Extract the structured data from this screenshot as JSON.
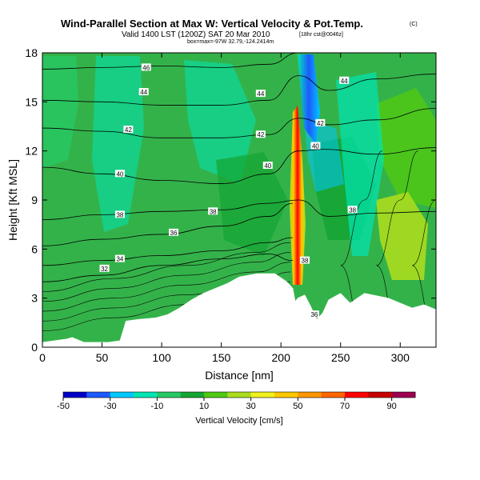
{
  "chart_data": {
    "type": "heatmap",
    "title": "Wind-Parallel Section at Max W: Vertical Velocity & Pot.Temp.",
    "title_mark": "(C)",
    "subtitle": "Valid 1400 LST (1200Z) SAT 20 Mar 2010",
    "subtitle_extra": "[18hr cst@0046z]",
    "subtitle_small": "box=max=-97W 32.79,-124.2414m",
    "xlabel": "Distance [nm]",
    "ylabel": "Height [Kft MSL]",
    "xlim": [
      0,
      330
    ],
    "ylim": [
      0,
      18
    ],
    "x_ticks": [
      0,
      50,
      100,
      150,
      200,
      250,
      300
    ],
    "y_ticks": [
      0,
      3,
      6,
      9,
      12,
      15,
      18
    ],
    "colorbar": {
      "label": "Vertical Velocity [cm/s]",
      "ticks": [
        -50,
        -30,
        -10,
        10,
        30,
        50,
        70,
        90
      ],
      "range": [
        -50,
        100
      ],
      "colors": [
        "#0000c8",
        "#1e5aff",
        "#00c8ff",
        "#00e6b4",
        "#28c864",
        "#14a532",
        "#50c814",
        "#aadc1e",
        "#f0f01e",
        "#ffc800",
        "#ff9600",
        "#ff6400",
        "#ff0000",
        "#c80000",
        "#a00050"
      ]
    },
    "background_color": "#34b24a",
    "terrain": [
      [
        0,
        0.3
      ],
      [
        10,
        0.4
      ],
      [
        20,
        0.5
      ],
      [
        25,
        0.6
      ],
      [
        35,
        0.3
      ],
      [
        55,
        0.3
      ],
      [
        65,
        0.4
      ],
      [
        70,
        1.6
      ],
      [
        80,
        1.7
      ],
      [
        95,
        1.8
      ],
      [
        105,
        2.0
      ],
      [
        115,
        2.4
      ],
      [
        125,
        2.9
      ],
      [
        135,
        3.3
      ],
      [
        145,
        3.6
      ],
      [
        155,
        3.9
      ],
      [
        165,
        4.3
      ],
      [
        180,
        4.5
      ],
      [
        195,
        4.5
      ],
      [
        205,
        4.0
      ],
      [
        210,
        3.6
      ],
      [
        212,
        2.8
      ],
      [
        214,
        3.0
      ],
      [
        220,
        3.2
      ],
      [
        225,
        2.5
      ],
      [
        230,
        1.7
      ],
      [
        235,
        2.1
      ],
      [
        240,
        2.9
      ],
      [
        250,
        3.3
      ],
      [
        258,
        2.7
      ],
      [
        270,
        3.3
      ],
      [
        290,
        3.0
      ],
      [
        310,
        2.4
      ],
      [
        320,
        2.6
      ],
      [
        330,
        2.3
      ]
    ],
    "theta_contours": [
      {
        "label": "32",
        "points": [
          [
            0,
            4.0
          ],
          [
            50,
            4.4
          ],
          [
            100,
            5.0
          ],
          [
            150,
            5.4
          ],
          [
            190,
            5.7
          ],
          [
            210,
            5.3
          ]
        ]
      },
      {
        "label": "34",
        "points": [
          [
            0,
            5.0
          ],
          [
            50,
            5.3
          ],
          [
            100,
            5.6
          ],
          [
            150,
            5.9
          ],
          [
            190,
            6.4
          ],
          [
            210,
            6.7
          ]
        ]
      },
      {
        "label": "36",
        "points": [
          [
            0,
            6.2
          ],
          [
            50,
            6.6
          ],
          [
            100,
            6.9
          ],
          [
            150,
            7.4
          ],
          [
            190,
            8.0
          ],
          [
            210,
            8.8
          ]
        ]
      },
      {
        "label": "38",
        "points": [
          [
            0,
            7.8
          ],
          [
            50,
            8.1
          ],
          [
            100,
            8.3
          ],
          [
            150,
            8.4
          ],
          [
            190,
            8.8
          ],
          [
            215,
            9.0
          ],
          [
            240,
            8.0
          ],
          [
            280,
            8.2
          ],
          [
            330,
            8.3
          ]
        ]
      },
      {
        "label": "40",
        "points": [
          [
            0,
            11.0
          ],
          [
            50,
            10.6
          ],
          [
            100,
            10.2
          ],
          [
            150,
            10.0
          ],
          [
            190,
            10.6
          ],
          [
            215,
            12.0
          ],
          [
            235,
            12.1
          ],
          [
            280,
            11.8
          ],
          [
            330,
            12.2
          ]
        ]
      },
      {
        "label": "42",
        "points": [
          [
            0,
            13.4
          ],
          [
            50,
            13.2
          ],
          [
            100,
            12.8
          ],
          [
            150,
            12.8
          ],
          [
            190,
            13.0
          ],
          [
            215,
            14.0
          ],
          [
            240,
            13.6
          ],
          [
            280,
            13.9
          ],
          [
            330,
            14.6
          ]
        ]
      },
      {
        "label": "44",
        "points": [
          [
            0,
            15.1
          ],
          [
            50,
            15.0
          ],
          [
            100,
            14.8
          ],
          [
            150,
            14.8
          ],
          [
            190,
            15.1
          ],
          [
            215,
            16.6
          ],
          [
            240,
            15.7
          ],
          [
            280,
            16.4
          ],
          [
            330,
            16.7
          ]
        ]
      },
      {
        "label": "46",
        "points": [
          [
            0,
            17.0
          ],
          [
            50,
            17.1
          ],
          [
            100,
            17.2
          ],
          [
            150,
            17.1
          ],
          [
            190,
            17.3
          ],
          [
            215,
            18.0
          ]
        ]
      }
    ],
    "contour_labels": [
      {
        "text": "46",
        "x": 87,
        "y": 17.1
      },
      {
        "text": "44",
        "x": 85,
        "y": 15.6
      },
      {
        "text": "44",
        "x": 183,
        "y": 15.5
      },
      {
        "text": "44",
        "x": 253,
        "y": 16.3
      },
      {
        "text": "42",
        "x": 72,
        "y": 13.3
      },
      {
        "text": "42",
        "x": 183,
        "y": 13.0
      },
      {
        "text": "42",
        "x": 233,
        "y": 13.7
      },
      {
        "text": "40",
        "x": 65,
        "y": 10.6
      },
      {
        "text": "40",
        "x": 189,
        "y": 11.1
      },
      {
        "text": "40",
        "x": 229,
        "y": 12.3
      },
      {
        "text": "38",
        "x": 65,
        "y": 8.1
      },
      {
        "text": "38",
        "x": 143,
        "y": 8.3
      },
      {
        "text": "38",
        "x": 260,
        "y": 8.4
      },
      {
        "text": "36",
        "x": 110,
        "y": 7.0
      },
      {
        "text": "34",
        "x": 65,
        "y": 5.4
      },
      {
        "text": "32",
        "x": 52,
        "y": 4.8
      },
      {
        "text": "38",
        "x": 220,
        "y": 5.3
      },
      {
        "text": "36",
        "x": 228,
        "y": 2.0
      }
    ]
  }
}
